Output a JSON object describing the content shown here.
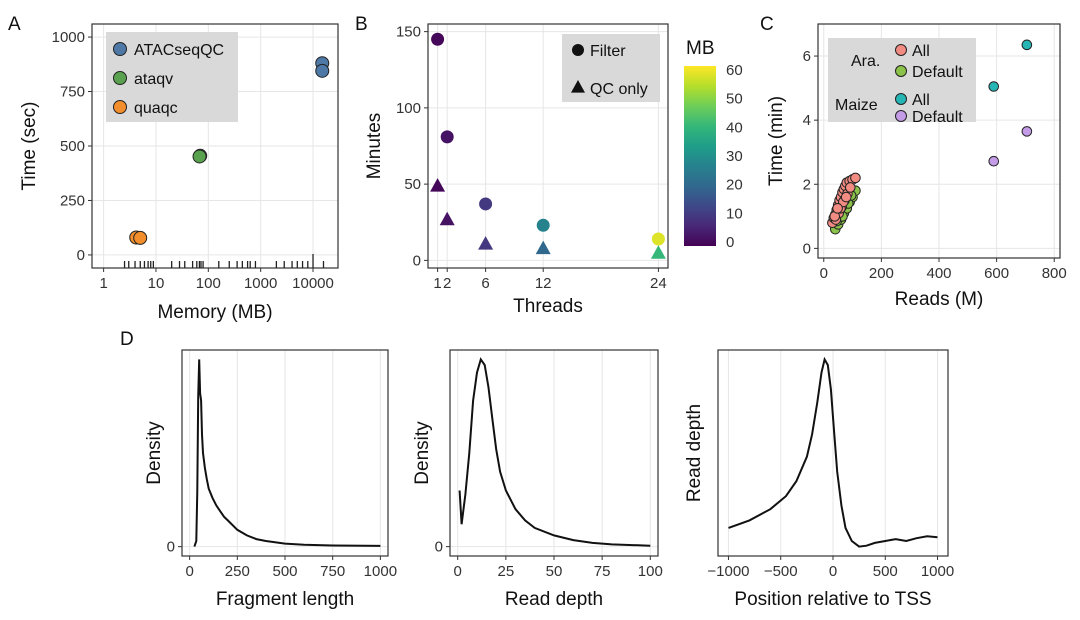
{
  "chart_data": [
    {
      "id": "A",
      "type": "scatter",
      "panel_label": "A",
      "xlabel": "Memory (MB)",
      "ylabel": "Time (sec)",
      "xscale": "log",
      "xlim": [
        0.6,
        30000
      ],
      "ylim": [
        -60,
        1060
      ],
      "xticks": [
        {
          "v": 1,
          "label": "1"
        },
        {
          "v": 10,
          "label": "10"
        },
        {
          "v": 100,
          "label": "100"
        },
        {
          "v": 1000,
          "label": "1000"
        },
        {
          "v": 10000,
          "label": "10000"
        }
      ],
      "yticks": [
        {
          "v": 0,
          "label": "0"
        },
        {
          "v": 250,
          "label": "250"
        },
        {
          "v": 500,
          "label": "500"
        },
        {
          "v": 750,
          "label": "750"
        },
        {
          "v": 1000,
          "label": "1000"
        }
      ],
      "grid": true,
      "legend_position": "top-left",
      "series": [
        {
          "name": "ATACseqQC",
          "color": "#4e79a7",
          "points": [
            [
              15000,
              880
            ],
            [
              15000,
              845
            ]
          ]
        },
        {
          "name": "ataqv",
          "color": "#59a14f",
          "points": [
            [
              70,
              455
            ],
            [
              68,
              452
            ]
          ]
        },
        {
          "name": "quaqc",
          "color": "#f28e2b",
          "points": [
            [
              4.2,
              80
            ],
            [
              5,
              78
            ]
          ]
        }
      ],
      "rug_log10": [
        0.4,
        0.48,
        0.6,
        0.7,
        0.78,
        0.85,
        0.9,
        0.95,
        1.3,
        1.45,
        1.55,
        1.7,
        1.78,
        1.83,
        1.86,
        1.9,
        2.2,
        2.4,
        2.55,
        2.65,
        2.75,
        2.8,
        2.9,
        3.3,
        3.45,
        3.6,
        3.7,
        3.8,
        3.9,
        4.0,
        4.2
      ]
    },
    {
      "id": "B",
      "type": "scatter",
      "panel_label": "B",
      "xlabel": "Threads",
      "ylabel": "Minutes",
      "xlim": [
        0,
        25
      ],
      "ylim": [
        -5,
        155
      ],
      "xticks": [
        {
          "v": 1,
          "label": "1"
        },
        {
          "v": 2,
          "label": "2"
        },
        {
          "v": 6,
          "label": "6"
        },
        {
          "v": 12,
          "label": "12"
        },
        {
          "v": 24,
          "label": "24"
        }
      ],
      "yticks": [
        {
          "v": 0,
          "label": "0"
        },
        {
          "v": 50,
          "label": "50"
        },
        {
          "v": 100,
          "label": "100"
        },
        {
          "v": 150,
          "label": "150"
        }
      ],
      "grid": true,
      "legend_position": "top-right",
      "shape_legend": [
        {
          "shape": "circle",
          "label": "Filter"
        },
        {
          "shape": "triangle",
          "label": "QC only"
        }
      ],
      "colorbar": {
        "title": "MB",
        "min": 0,
        "max": 60,
        "ticks": [
          0,
          10,
          20,
          30,
          40,
          50,
          60
        ]
      },
      "points": [
        {
          "x": 1,
          "y": 145,
          "shape": "circle",
          "mb": 1
        },
        {
          "x": 2,
          "y": 81,
          "shape": "circle",
          "mb": 3
        },
        {
          "x": 6,
          "y": 37,
          "shape": "circle",
          "mb": 10
        },
        {
          "x": 12,
          "y": 23,
          "shape": "circle",
          "mb": 27
        },
        {
          "x": 24,
          "y": 14,
          "shape": "circle",
          "mb": 57
        },
        {
          "x": 1,
          "y": 49,
          "shape": "triangle",
          "mb": 1
        },
        {
          "x": 2,
          "y": 27,
          "shape": "triangle",
          "mb": 3
        },
        {
          "x": 6,
          "y": 11,
          "shape": "triangle",
          "mb": 10
        },
        {
          "x": 12,
          "y": 8,
          "shape": "triangle",
          "mb": 20
        },
        {
          "x": 24,
          "y": 5,
          "shape": "triangle",
          "mb": 40
        }
      ]
    },
    {
      "id": "C",
      "type": "scatter",
      "panel_label": "C",
      "xlabel": "Reads (M)",
      "ylabel": "Time (min)",
      "xlim": [
        -20,
        820
      ],
      "ylim": [
        -0.3,
        7.0
      ],
      "xticks": [
        {
          "v": 0,
          "label": "0"
        },
        {
          "v": 200,
          "label": "200"
        },
        {
          "v": 400,
          "label": "400"
        },
        {
          "v": 600,
          "label": "600"
        },
        {
          "v": 800,
          "label": "800"
        }
      ],
      "yticks": [
        {
          "v": 0,
          "label": "0"
        },
        {
          "v": 2,
          "label": "2"
        },
        {
          "v": 4,
          "label": "4"
        },
        {
          "v": 6,
          "label": "6"
        }
      ],
      "grid": true,
      "legend_position": "top-left",
      "legend_groups": [
        {
          "group": "Ara.",
          "entries": [
            {
              "label": "All",
              "color": "#f28b82"
            },
            {
              "label": "Default",
              "color": "#8bc34a"
            }
          ]
        },
        {
          "group": "Maize",
          "entries": [
            {
              "label": "All",
              "color": "#26b5b5"
            },
            {
              "label": "Default",
              "color": "#c39be6"
            }
          ]
        }
      ],
      "series": [
        {
          "name": "Ara. Default",
          "color": "#8bc34a",
          "points": [
            [
              40,
              0.6
            ],
            [
              50,
              0.75
            ],
            [
              60,
              0.9
            ],
            [
              70,
              1.1
            ],
            [
              80,
              1.25
            ],
            [
              90,
              1.45
            ],
            [
              100,
              1.6
            ],
            [
              110,
              1.8
            ],
            [
              45,
              0.85
            ],
            [
              65,
              1.0
            ],
            [
              85,
              1.4
            ],
            [
              95,
              1.65
            ]
          ]
        },
        {
          "name": "Ara. All",
          "color": "#f28b82",
          "points": [
            [
              30,
              0.8
            ],
            [
              35,
              0.95
            ],
            [
              40,
              1.05
            ],
            [
              45,
              1.2
            ],
            [
              50,
              1.35
            ],
            [
              55,
              1.5
            ],
            [
              60,
              1.6
            ],
            [
              65,
              1.75
            ],
            [
              70,
              1.85
            ],
            [
              75,
              1.95
            ],
            [
              80,
              2.05
            ],
            [
              90,
              2.1
            ],
            [
              100,
              2.15
            ],
            [
              110,
              2.2
            ],
            [
              42,
              0.9
            ],
            [
              52,
              1.1
            ],
            [
              62,
              1.3
            ],
            [
              72,
              1.5
            ],
            [
              82,
              1.7
            ],
            [
              92,
              1.9
            ],
            [
              58,
              1.25
            ],
            [
              68,
              1.45
            ],
            [
              78,
              1.6
            ],
            [
              38,
              1.0
            ],
            [
              48,
              1.25
            ]
          ]
        },
        {
          "name": "Maize All",
          "color": "#26b5b5",
          "points": [
            [
              590,
              5.05
            ],
            [
              705,
              6.35
            ]
          ]
        },
        {
          "name": "Maize Default",
          "color": "#c39be6",
          "points": [
            [
              590,
              2.72
            ],
            [
              705,
              3.65
            ]
          ]
        }
      ]
    },
    {
      "id": "D1",
      "type": "line",
      "panel_label": "D",
      "xlabel": "Fragment length",
      "ylabel": "Density",
      "xlim": [
        -40,
        1040
      ],
      "ylim": [
        -0.05,
        1.05
      ],
      "xticks": [
        {
          "v": 0,
          "label": "0"
        },
        {
          "v": 250,
          "label": "250"
        },
        {
          "v": 500,
          "label": "500"
        },
        {
          "v": 750,
          "label": "750"
        },
        {
          "v": 1000,
          "label": "1000"
        }
      ],
      "yticks": [
        {
          "v": 0,
          "label": "0"
        }
      ],
      "grid": true,
      "series": [
        {
          "points": [
            [
              25,
              0.0
            ],
            [
              35,
              0.03
            ],
            [
              40,
              0.3
            ],
            [
              45,
              0.8
            ],
            [
              50,
              1.0
            ],
            [
              55,
              0.82
            ],
            [
              60,
              0.78
            ],
            [
              65,
              0.6
            ],
            [
              70,
              0.5
            ],
            [
              80,
              0.42
            ],
            [
              90,
              0.36
            ],
            [
              100,
              0.31
            ],
            [
              120,
              0.26
            ],
            [
              140,
              0.22
            ],
            [
              160,
              0.19
            ],
            [
              180,
              0.16
            ],
            [
              200,
              0.14
            ],
            [
              250,
              0.09
            ],
            [
              300,
              0.06
            ],
            [
              350,
              0.04
            ],
            [
              400,
              0.03
            ],
            [
              500,
              0.016
            ],
            [
              600,
              0.01
            ],
            [
              750,
              0.006
            ],
            [
              1000,
              0.004
            ]
          ]
        }
      ]
    },
    {
      "id": "D2",
      "type": "line",
      "xlabel": "Read depth",
      "ylabel": "Density",
      "xlim": [
        -4,
        104
      ],
      "ylim": [
        -0.05,
        1.05
      ],
      "xticks": [
        {
          "v": 0,
          "label": "0"
        },
        {
          "v": 25,
          "label": "25"
        },
        {
          "v": 50,
          "label": "50"
        },
        {
          "v": 75,
          "label": "75"
        },
        {
          "v": 100,
          "label": "100"
        }
      ],
      "yticks": [
        {
          "v": 0,
          "label": "0"
        }
      ],
      "grid": true,
      "series": [
        {
          "points": [
            [
              1,
              0.3
            ],
            [
              2,
              0.12
            ],
            [
              4,
              0.28
            ],
            [
              6,
              0.5
            ],
            [
              8,
              0.78
            ],
            [
              10,
              0.93
            ],
            [
              12,
              1.0
            ],
            [
              14,
              0.97
            ],
            [
              16,
              0.85
            ],
            [
              18,
              0.68
            ],
            [
              20,
              0.52
            ],
            [
              22,
              0.4
            ],
            [
              25,
              0.3
            ],
            [
              30,
              0.2
            ],
            [
              35,
              0.14
            ],
            [
              40,
              0.1
            ],
            [
              50,
              0.06
            ],
            [
              60,
              0.035
            ],
            [
              70,
              0.02
            ],
            [
              80,
              0.012
            ],
            [
              100,
              0.005
            ]
          ]
        }
      ]
    },
    {
      "id": "D3",
      "type": "line",
      "xlabel": "Position relative to TSS",
      "ylabel": "Read depth",
      "xlim": [
        -1100,
        1100
      ],
      "ylim": [
        -0.05,
        1.05
      ],
      "xticks": [
        {
          "v": -1000,
          "label": "−1000"
        },
        {
          "v": -500,
          "label": "−500"
        },
        {
          "v": 0,
          "label": "0"
        },
        {
          "v": 500,
          "label": "500"
        },
        {
          "v": 1000,
          "label": "1000"
        }
      ],
      "yticks": [],
      "grid": true,
      "series": [
        {
          "points": [
            [
              -1000,
              0.1
            ],
            [
              -800,
              0.14
            ],
            [
              -600,
              0.2
            ],
            [
              -450,
              0.27
            ],
            [
              -350,
              0.35
            ],
            [
              -250,
              0.48
            ],
            [
              -200,
              0.6
            ],
            [
              -150,
              0.77
            ],
            [
              -110,
              0.93
            ],
            [
              -80,
              1.0
            ],
            [
              -50,
              0.97
            ],
            [
              -20,
              0.84
            ],
            [
              10,
              0.62
            ],
            [
              40,
              0.4
            ],
            [
              80,
              0.22
            ],
            [
              120,
              0.1
            ],
            [
              180,
              0.03
            ],
            [
              250,
              0.0
            ],
            [
              320,
              0.005
            ],
            [
              400,
              0.02
            ],
            [
              500,
              0.03
            ],
            [
              600,
              0.04
            ],
            [
              700,
              0.03
            ],
            [
              800,
              0.045
            ],
            [
              900,
              0.055
            ],
            [
              1000,
              0.05
            ]
          ]
        }
      ]
    }
  ]
}
